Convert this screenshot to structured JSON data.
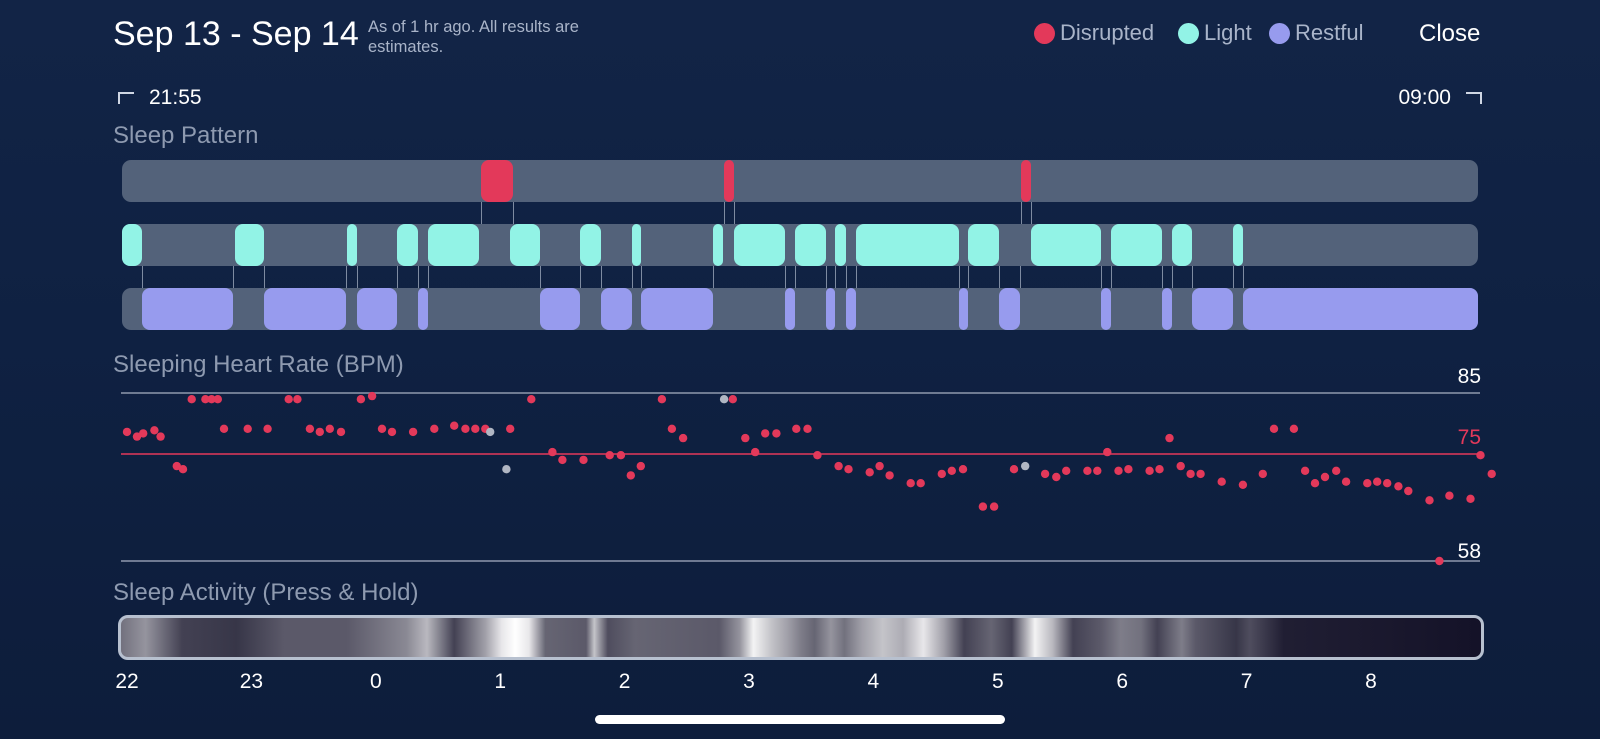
{
  "header": {
    "date_range": "Sep 13 - Sep 14",
    "note": "As of 1 hr ago. All results are estimates.",
    "close_label": "Close"
  },
  "legend": [
    {
      "label": "Disrupted",
      "color": "#e3395a"
    },
    {
      "label": "Light",
      "color": "#92f3e6"
    },
    {
      "label": "Restful",
      "color": "#979bee"
    }
  ],
  "time_range": {
    "start": "21:55",
    "end": "09:00"
  },
  "sleep_pattern": {
    "title": "Sleep Pattern",
    "disrupted": [
      [
        0.265,
        0.288
      ],
      [
        0.444,
        0.451
      ],
      [
        0.663,
        0.67
      ]
    ],
    "light": [
      [
        0.0,
        0.015
      ],
      [
        0.083,
        0.105
      ],
      [
        0.166,
        0.173
      ],
      [
        0.203,
        0.218
      ],
      [
        0.226,
        0.263
      ],
      [
        0.286,
        0.308
      ],
      [
        0.338,
        0.353
      ],
      [
        0.376,
        0.383
      ],
      [
        0.436,
        0.443
      ],
      [
        0.451,
        0.489
      ],
      [
        0.496,
        0.519
      ],
      [
        0.526,
        0.534
      ],
      [
        0.541,
        0.617
      ],
      [
        0.624,
        0.647
      ],
      [
        0.67,
        0.722
      ],
      [
        0.729,
        0.767
      ],
      [
        0.774,
        0.789
      ],
      [
        0.819,
        0.827
      ]
    ],
    "restful": [
      [
        0.015,
        0.082
      ],
      [
        0.105,
        0.165
      ],
      [
        0.173,
        0.203
      ],
      [
        0.218,
        0.226
      ],
      [
        0.308,
        0.338
      ],
      [
        0.353,
        0.376
      ],
      [
        0.383,
        0.436
      ],
      [
        0.489,
        0.496
      ],
      [
        0.519,
        0.526
      ],
      [
        0.534,
        0.541
      ],
      [
        0.617,
        0.624
      ],
      [
        0.647,
        0.662
      ],
      [
        0.722,
        0.729
      ],
      [
        0.767,
        0.774
      ],
      [
        0.789,
        0.819
      ],
      [
        0.827,
        1.0
      ]
    ]
  },
  "heart_rate": {
    "title": "Sleeping Heart Rate (BPM)",
    "max_label": "85",
    "avg_label": "75",
    "min_label": "58",
    "y_max": 85,
    "y_avg": 75,
    "y_min": 58,
    "point_color": "#e3395a",
    "gray_color": "#b0b6c3",
    "points": [
      [
        22.0,
        78.75
      ],
      [
        22.08,
        78.0
      ],
      [
        22.13,
        78.5
      ],
      [
        22.22,
        79.0
      ],
      [
        22.27,
        78.0
      ],
      [
        22.4,
        73.25
      ],
      [
        22.45,
        72.75
      ],
      [
        22.52,
        84.0
      ],
      [
        22.63,
        84.0
      ],
      [
        22.68,
        84.0
      ],
      [
        22.73,
        84.0
      ],
      [
        22.78,
        79.25
      ],
      [
        22.97,
        79.25
      ],
      [
        23.13,
        79.25
      ],
      [
        23.3,
        84.0
      ],
      [
        23.37,
        84.0
      ],
      [
        23.47,
        79.25
      ],
      [
        23.55,
        78.75
      ],
      [
        23.63,
        79.25
      ],
      [
        23.72,
        78.75
      ],
      [
        23.88,
        84.0
      ],
      [
        23.97,
        84.5
      ],
      [
        0.05,
        79.25
      ],
      [
        0.13,
        78.75
      ],
      [
        0.3,
        78.75
      ],
      [
        0.47,
        79.25
      ],
      [
        0.63,
        79.75
      ],
      [
        0.72,
        79.25
      ],
      [
        0.8,
        79.25
      ],
      [
        0.88,
        79.25
      ],
      [
        1.08,
        79.25
      ],
      [
        1.25,
        84.0
      ],
      [
        1.42,
        75.5
      ],
      [
        1.5,
        74.25
      ],
      [
        1.67,
        74.25
      ],
      [
        1.88,
        75.0
      ],
      [
        1.97,
        75.0
      ],
      [
        2.05,
        71.75
      ],
      [
        2.13,
        73.25
      ],
      [
        2.3,
        84.0
      ],
      [
        2.38,
        79.25
      ],
      [
        2.47,
        77.75
      ],
      [
        2.87,
        84.0
      ],
      [
        2.97,
        77.75
      ],
      [
        3.05,
        75.5
      ],
      [
        3.13,
        78.5
      ],
      [
        3.22,
        78.5
      ],
      [
        3.38,
        79.25
      ],
      [
        3.47,
        79.25
      ],
      [
        3.55,
        75.0
      ],
      [
        3.72,
        73.25
      ],
      [
        3.8,
        72.75
      ],
      [
        3.97,
        72.25
      ],
      [
        4.05,
        73.25
      ],
      [
        4.13,
        71.75
      ],
      [
        4.3,
        70.5
      ],
      [
        4.38,
        70.5
      ],
      [
        4.55,
        72.0
      ],
      [
        4.63,
        72.5
      ],
      [
        4.72,
        72.75
      ],
      [
        4.88,
        66.75
      ],
      [
        4.97,
        66.75
      ],
      [
        5.13,
        72.75
      ],
      [
        5.38,
        72.0
      ],
      [
        5.47,
        71.5
      ],
      [
        5.55,
        72.5
      ],
      [
        5.72,
        72.5
      ],
      [
        5.8,
        72.5
      ],
      [
        5.88,
        75.5
      ],
      [
        5.97,
        72.5
      ],
      [
        6.05,
        72.75
      ],
      [
        6.22,
        72.5
      ],
      [
        6.3,
        72.75
      ],
      [
        6.38,
        77.75
      ],
      [
        6.47,
        73.25
      ],
      [
        6.55,
        72.0
      ],
      [
        6.63,
        72.0
      ],
      [
        6.8,
        70.75
      ],
      [
        6.97,
        70.25
      ],
      [
        7.13,
        72.0
      ],
      [
        7.22,
        79.25
      ],
      [
        7.38,
        79.25
      ],
      [
        7.47,
        72.5
      ],
      [
        7.55,
        70.5
      ],
      [
        7.63,
        71.5
      ],
      [
        7.72,
        72.5
      ],
      [
        7.8,
        70.75
      ],
      [
        7.97,
        70.5
      ],
      [
        8.05,
        70.75
      ],
      [
        8.13,
        70.5
      ],
      [
        8.22,
        70.0
      ],
      [
        8.3,
        69.25
      ],
      [
        8.47,
        67.75
      ],
      [
        8.55,
        58.0
      ],
      [
        8.63,
        68.5
      ],
      [
        8.8,
        68.0
      ],
      [
        8.88,
        75.0
      ],
      [
        8.97,
        72.0
      ]
    ],
    "gray_points": [
      [
        0.92,
        78.75
      ],
      [
        1.05,
        72.75
      ],
      [
        2.8,
        84.0
      ],
      [
        5.22,
        73.25
      ]
    ]
  },
  "sleep_activity": {
    "title": "Sleep Activity (Press & Hold)",
    "bands": [
      [
        0.0,
        0.4
      ],
      [
        0.018,
        0.55
      ],
      [
        0.045,
        0.2
      ],
      [
        0.085,
        0.15
      ],
      [
        0.12,
        0.3
      ],
      [
        0.166,
        0.3
      ],
      [
        0.21,
        0.5
      ],
      [
        0.225,
        0.7
      ],
      [
        0.235,
        0.45
      ],
      [
        0.245,
        0.2
      ],
      [
        0.268,
        0.6
      ],
      [
        0.28,
        0.9
      ],
      [
        0.29,
        1.0
      ],
      [
        0.3,
        0.9
      ],
      [
        0.312,
        0.35
      ],
      [
        0.342,
        0.3
      ],
      [
        0.348,
        0.75
      ],
      [
        0.358,
        0.25
      ],
      [
        0.378,
        0.35
      ],
      [
        0.44,
        0.3
      ],
      [
        0.455,
        0.55
      ],
      [
        0.465,
        0.95
      ],
      [
        0.478,
        0.75
      ],
      [
        0.49,
        0.6
      ],
      [
        0.5,
        0.45
      ],
      [
        0.51,
        0.35
      ],
      [
        0.522,
        0.55
      ],
      [
        0.532,
        0.4
      ],
      [
        0.545,
        0.6
      ],
      [
        0.56,
        0.75
      ],
      [
        0.575,
        0.65
      ],
      [
        0.59,
        0.9
      ],
      [
        0.605,
        0.6
      ],
      [
        0.62,
        0.2
      ],
      [
        0.64,
        0.35
      ],
      [
        0.655,
        0.2
      ],
      [
        0.672,
        0.95
      ],
      [
        0.685,
        0.7
      ],
      [
        0.7,
        0.2
      ],
      [
        0.72,
        0.3
      ],
      [
        0.735,
        0.45
      ],
      [
        0.75,
        0.4
      ],
      [
        0.762,
        0.2
      ],
      [
        0.78,
        0.45
      ],
      [
        0.79,
        0.3
      ],
      [
        0.82,
        0.15
      ],
      [
        0.83,
        0.25
      ],
      [
        0.855,
        0.05
      ],
      [
        1.0,
        0.0
      ]
    ]
  },
  "x_axis": {
    "ticks": [
      "22",
      "23",
      "0",
      "1",
      "2",
      "3",
      "4",
      "5",
      "6",
      "7",
      "8"
    ]
  }
}
